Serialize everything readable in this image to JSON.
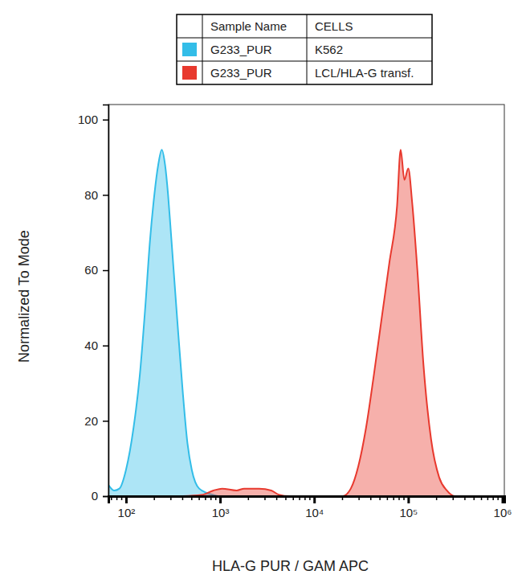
{
  "chart_data": {
    "type": "area",
    "x_label": "HLA-G PUR / GAM APC",
    "y_label": "Normalized To Mode",
    "log": "x",
    "xlim": [
      65,
      1050000
    ],
    "xticks": [
      {
        "value": 100,
        "label": "10²"
      },
      {
        "value": 1000,
        "label": "10³"
      },
      {
        "value": 10000,
        "label": "10⁴"
      },
      {
        "value": 100000,
        "label": "10⁵"
      },
      {
        "value": 1000000,
        "label": "10⁶"
      }
    ],
    "xminor_ticks": [
      70,
      80,
      90,
      200,
      300,
      400,
      500,
      600,
      700,
      800,
      900,
      2000,
      3000,
      4000,
      5000,
      6000,
      7000,
      8000,
      9000,
      20000,
      30000,
      40000,
      50000,
      60000,
      70000,
      80000,
      90000,
      200000,
      300000,
      400000,
      500000,
      600000,
      700000,
      800000,
      900000
    ],
    "ylim": [
      0,
      104
    ],
    "yticks": [
      0,
      20,
      40,
      60,
      80,
      100
    ],
    "legend": "top",
    "legend_columns": [
      "Sample Name",
      "CELLS"
    ],
    "series": [
      {
        "name": "G233_PUR",
        "cells": "K562",
        "color": "#33bde8",
        "x": [
          65,
          75,
          85,
          100,
          120,
          140,
          160,
          180,
          200,
          220,
          240,
          260,
          280,
          300,
          350,
          400,
          450,
          500,
          600,
          800,
          1000,
          10000,
          100000,
          1000000
        ],
        "values": [
          3,
          1.5,
          2,
          7,
          18,
          32,
          50,
          68,
          80,
          88,
          92,
          88,
          80,
          70,
          47,
          28,
          14,
          7,
          2,
          0.5,
          0,
          0,
          0,
          0
        ]
      },
      {
        "name": "G233_PUR",
        "cells": "LCL/HLA-G transf.",
        "color": "#e8392e",
        "x": [
          400,
          630,
          850,
          1050,
          1500,
          1800,
          2600,
          3500,
          4200,
          5500,
          20000,
          24500,
          29500,
          35500,
          43000,
          52000,
          63000,
          76000,
          83000,
          91000,
          100000,
          110000,
          125000,
          145000,
          175000,
          213000,
          257000,
          310000,
          1000000
        ],
        "values": [
          0,
          0.3,
          1.5,
          2,
          1.5,
          2,
          2,
          1.5,
          0.4,
          0,
          0,
          2,
          8,
          18,
          32,
          47,
          62,
          77,
          92,
          84,
          87,
          78,
          60,
          35,
          15,
          5,
          1.5,
          0,
          0
        ]
      }
    ]
  }
}
